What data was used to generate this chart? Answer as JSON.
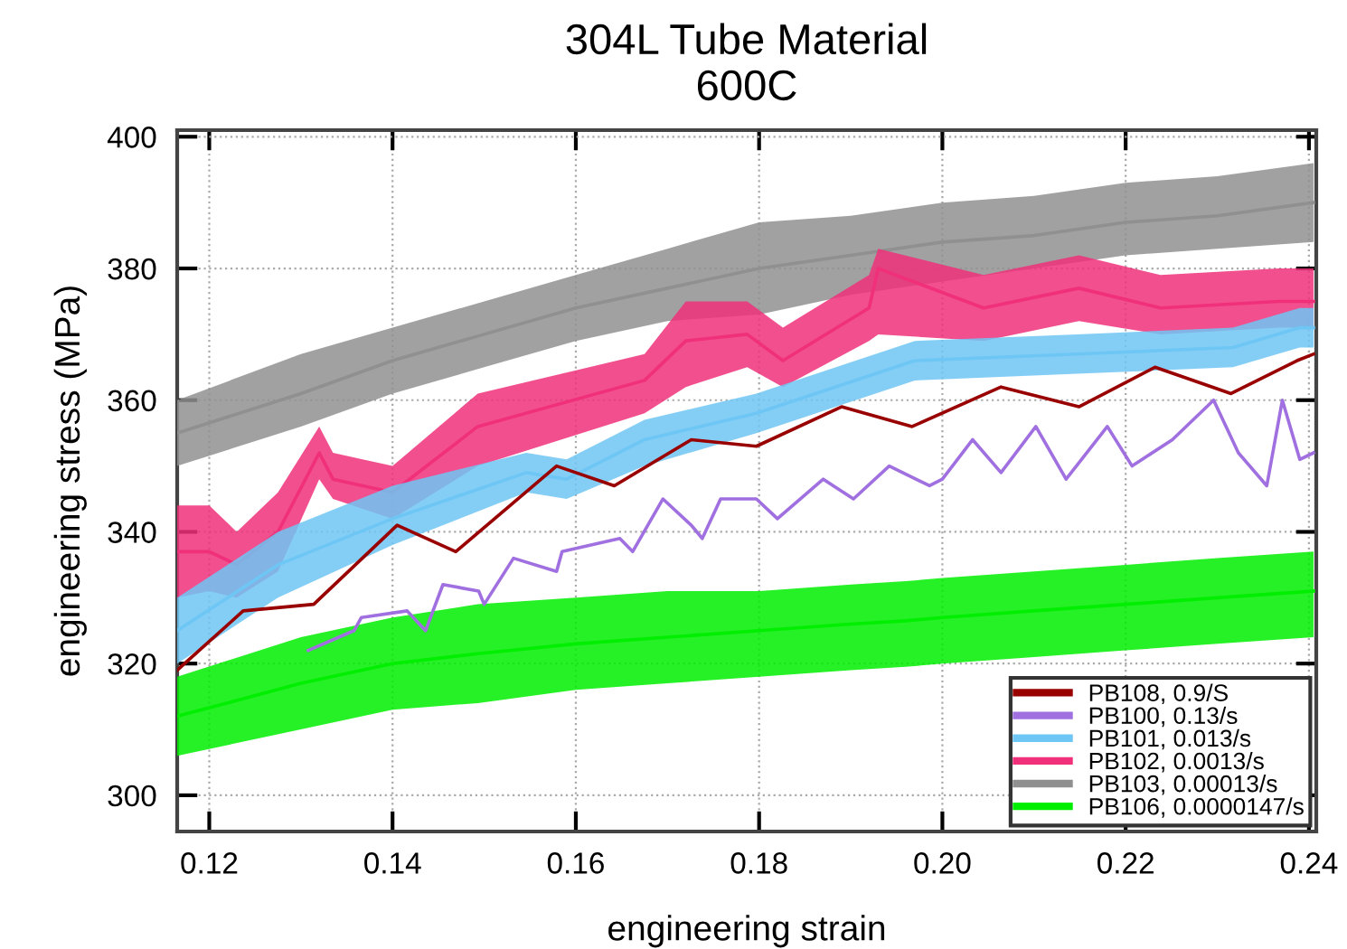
{
  "chart_data": {
    "type": "line",
    "title": "304L Tube Material\n600C",
    "xlabel": "engineering strain",
    "ylabel": "engineering stress (MPa)",
    "xlim": [
      0.1165,
      0.2408
    ],
    "ylim": [
      294.5,
      401
    ],
    "xticks": [
      {
        "value": 0.12,
        "label": "0.12"
      },
      {
        "value": 0.14,
        "label": "0.14"
      },
      {
        "value": 0.16,
        "label": "0.16"
      },
      {
        "value": 0.18,
        "label": "0.18"
      },
      {
        "value": 0.2,
        "label": "0.20"
      },
      {
        "value": 0.22,
        "label": "0.22"
      },
      {
        "value": 0.24,
        "label": "0.24"
      }
    ],
    "yticks": [
      300,
      320,
      340,
      360,
      380,
      400
    ],
    "grid": true,
    "legend": "bottom right",
    "marker": "none",
    "line_style": "solid",
    "series": [
      {
        "name": "PB108, 0.9/S",
        "color": "#990000",
        "x": [
          0.1165,
          0.1237,
          0.1314,
          0.1405,
          0.1469,
          0.1579,
          0.1642,
          0.1726,
          0.1797,
          0.189,
          0.1967,
          0.2064,
          0.2149,
          0.2232,
          0.2315,
          0.2387,
          0.2405
        ],
        "values": [
          319,
          328,
          329,
          341,
          337,
          350,
          347,
          354,
          353,
          359,
          356,
          362,
          359,
          365,
          361,
          366,
          367
        ]
      },
      {
        "name": "PB100, 0.13/s",
        "color": "#a070e0",
        "x": [
          0.1308,
          0.1358,
          0.1366,
          0.1416,
          0.1436,
          0.1455,
          0.1494,
          0.15,
          0.1532,
          0.1579,
          0.1585,
          0.1648,
          0.1662,
          0.1695,
          0.1726,
          0.1738,
          0.1758,
          0.1797,
          0.182,
          0.187,
          0.1903,
          0.1942,
          0.1986,
          0.2,
          0.2033,
          0.2064,
          0.2102,
          0.2135,
          0.218,
          0.2207,
          0.2251,
          0.2296,
          0.2323,
          0.2354,
          0.2371,
          0.239,
          0.2405
        ],
        "values": [
          322,
          325,
          327,
          328,
          325,
          332,
          331,
          329,
          336,
          334,
          337,
          339,
          337,
          345,
          341,
          339,
          345,
          345,
          342,
          348,
          345,
          350,
          347,
          348,
          354,
          349,
          356,
          348,
          356,
          350,
          354,
          360,
          352,
          347,
          360,
          351,
          352
        ]
      },
      {
        "name": "PB101, 0.013/s",
        "color": "#6ec6f5",
        "x": [
          0.1165,
          0.1275,
          0.14,
          0.1546,
          0.159,
          0.1675,
          0.1797,
          0.197,
          0.2147,
          0.2317,
          0.239,
          0.2405
        ],
        "values": [
          325,
          335,
          342,
          349,
          348,
          354,
          358,
          366,
          367,
          368,
          371,
          371
        ],
        "lower": [
          320,
          330,
          338,
          346,
          345,
          350,
          355,
          363,
          364,
          365,
          368,
          368
        ],
        "upper": [
          330,
          340,
          347,
          352,
          351,
          357,
          361,
          369,
          370,
          371,
          374,
          374
        ]
      },
      {
        "name": "PB102, 0.0013/s",
        "color": "#f0307a",
        "x": [
          0.1165,
          0.12,
          0.123,
          0.1275,
          0.132,
          0.1335,
          0.14,
          0.1493,
          0.1675,
          0.172,
          0.1787,
          0.1826,
          0.192,
          0.193,
          0.2045,
          0.2149,
          0.2238,
          0.2367,
          0.2405
        ],
        "values": [
          337,
          337,
          335,
          340,
          352,
          348,
          346,
          356,
          363,
          369,
          370,
          366,
          374,
          380,
          374,
          377,
          374,
          375,
          375
        ],
        "lower": [
          330,
          331,
          330,
          334,
          348,
          345,
          342,
          350,
          358,
          362,
          365,
          362,
          369,
          370,
          369,
          372,
          370,
          371,
          371
        ],
        "upper": [
          344,
          344,
          340,
          346,
          356,
          352,
          350,
          361,
          367,
          375,
          375,
          371,
          379,
          383,
          379,
          382,
          379,
          380,
          380
        ]
      },
      {
        "name": "PB103, 0.00013/s",
        "color": "#909090",
        "x": [
          0.1165,
          0.13,
          0.14,
          0.15,
          0.16,
          0.17,
          0.18,
          0.19,
          0.2,
          0.21,
          0.22,
          0.23,
          0.2405
        ],
        "values": [
          355,
          361,
          366,
          370,
          374,
          377,
          380,
          382,
          384,
          385,
          387,
          388,
          390
        ],
        "lower": [
          350,
          356,
          361,
          365,
          369,
          372,
          373,
          376,
          378,
          380,
          382,
          383,
          384
        ],
        "upper": [
          360,
          367,
          371,
          375,
          379,
          383,
          387,
          388,
          390,
          391,
          393,
          394,
          396
        ]
      },
      {
        "name": "PB106, 0.0000147/s",
        "color": "#00ee00",
        "x": [
          0.1165,
          0.13,
          0.14,
          0.1493,
          0.16,
          0.17,
          0.18,
          0.19,
          0.196,
          0.2,
          0.21,
          0.22,
          0.23,
          0.2405
        ],
        "values": [
          312,
          317,
          320,
          321.5,
          323,
          324,
          325,
          326,
          326.5,
          327,
          328,
          329,
          330,
          331
        ],
        "lower": [
          306,
          310,
          313,
          314,
          316,
          317,
          318,
          319,
          319.5,
          320,
          321,
          322,
          323,
          324
        ],
        "upper": [
          318,
          324,
          327,
          329,
          330,
          331,
          331,
          332,
          332.5,
          333,
          334,
          335,
          336,
          337
        ]
      }
    ]
  }
}
